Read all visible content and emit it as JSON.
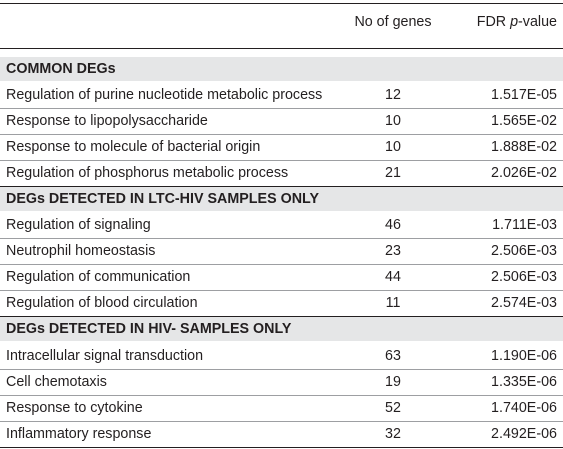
{
  "header": {
    "col_genes": "No of genes",
    "col_fdr_prefix": "FDR ",
    "col_fdr_p": "p",
    "col_fdr_suffix": "-value"
  },
  "sections": [
    {
      "title": "COMMON DEGs",
      "rows": [
        {
          "term": "Regulation of purine nucleotide metabolic process",
          "genes": "12",
          "fdr": "1.517E-05"
        },
        {
          "term": "Response to lipopolysaccharide",
          "genes": "10",
          "fdr": "1.565E-02"
        },
        {
          "term": "Response to molecule of bacterial origin",
          "genes": "10",
          "fdr": "1.888E-02"
        },
        {
          "term": "Regulation of phosphorus metabolic process",
          "genes": "21",
          "fdr": "2.026E-02"
        }
      ]
    },
    {
      "title": "DEGs DETECTED IN LTC-HIV SAMPLES ONLY",
      "rows": [
        {
          "term": "Regulation of signaling",
          "genes": "46",
          "fdr": "1.711E-03"
        },
        {
          "term": "Neutrophil homeostasis",
          "genes": "23",
          "fdr": "2.506E-03"
        },
        {
          "term": "Regulation of communication",
          "genes": "44",
          "fdr": "2.506E-03"
        },
        {
          "term": "Regulation of blood circulation",
          "genes": "11",
          "fdr": "2.574E-03"
        }
      ]
    },
    {
      "title": "DEGs DETECTED IN HIV- SAMPLES ONLY",
      "rows": [
        {
          "term": "Intracellular signal transduction",
          "genes": "63",
          "fdr": "1.190E-06"
        },
        {
          "term": "Cell chemotaxis",
          "genes": "19",
          "fdr": "1.335E-06"
        },
        {
          "term": "Response to cytokine",
          "genes": "52",
          "fdr": "1.740E-06"
        },
        {
          "term": "Inflammatory response",
          "genes": "32",
          "fdr": "2.492E-06"
        }
      ]
    }
  ]
}
